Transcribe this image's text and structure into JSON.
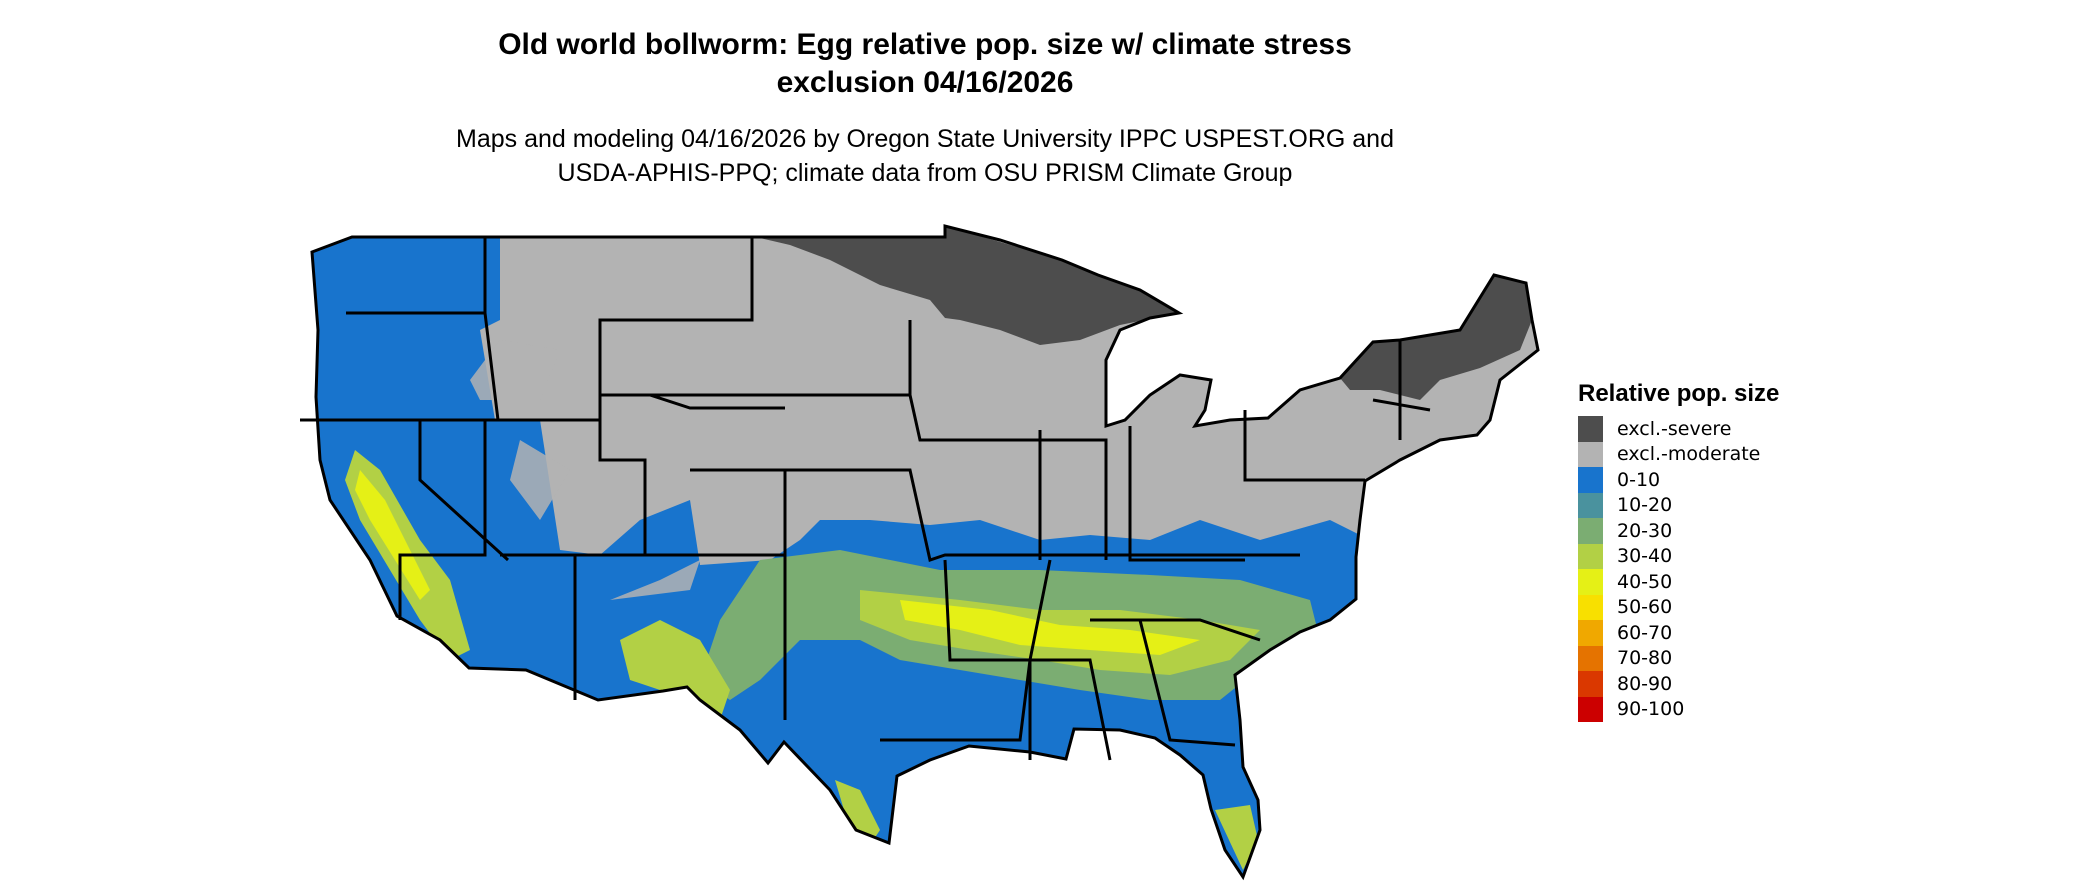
{
  "title": {
    "line1": "Old world bollworm: Egg relative pop. size w/ climate stress",
    "line2": "exclusion 04/16/2026"
  },
  "subtitle": {
    "line1": "Maps and modeling 04/16/2026 by Oregon State University IPPC USPEST.ORG and",
    "line2": "USDA-APHIS-PPQ; climate data from OSU PRISM Climate Group"
  },
  "legend": {
    "title": "Relative pop. size",
    "items": [
      {
        "label": "excl.-severe",
        "color": "#4d4d4d"
      },
      {
        "label": "excl.-moderate",
        "color": "#b3b3b3"
      },
      {
        "label": "0-10",
        "color": "#1874cd"
      },
      {
        "label": "10-20",
        "color": "#4a929e"
      },
      {
        "label": "20-30",
        "color": "#7bad72"
      },
      {
        "label": "30-40",
        "color": "#b2d045"
      },
      {
        "label": "40-50",
        "color": "#e5f016"
      },
      {
        "label": "50-60",
        "color": "#f8e000"
      },
      {
        "label": "60-70",
        "color": "#f0a800"
      },
      {
        "label": "70-80",
        "color": "#e57300"
      },
      {
        "label": "80-90",
        "color": "#da3800"
      },
      {
        "label": "90-100",
        "color": "#cc0000"
      }
    ]
  }
}
